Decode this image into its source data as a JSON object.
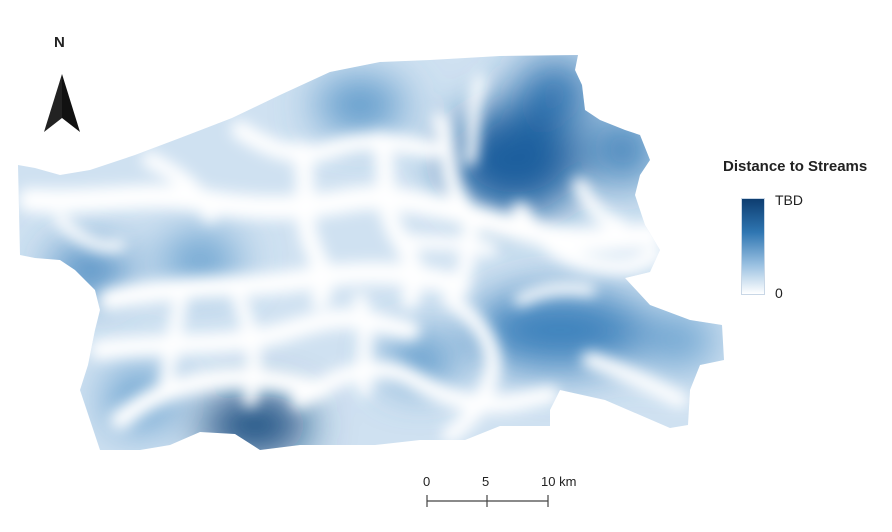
{
  "map": {
    "layer": "distance-to-streams-raster",
    "ramp_colors": {
      "high": "#0d3d70",
      "mid": "#2f76b2",
      "low": "#ffffff"
    }
  },
  "north_arrow": {
    "label": "N",
    "icon": "north-arrow-icon"
  },
  "legend": {
    "title": "Distance to Streams",
    "max_label": "TBD",
    "min_label": "0"
  },
  "scale_bar": {
    "labels": [
      "0",
      "5",
      "10 km"
    ]
  }
}
